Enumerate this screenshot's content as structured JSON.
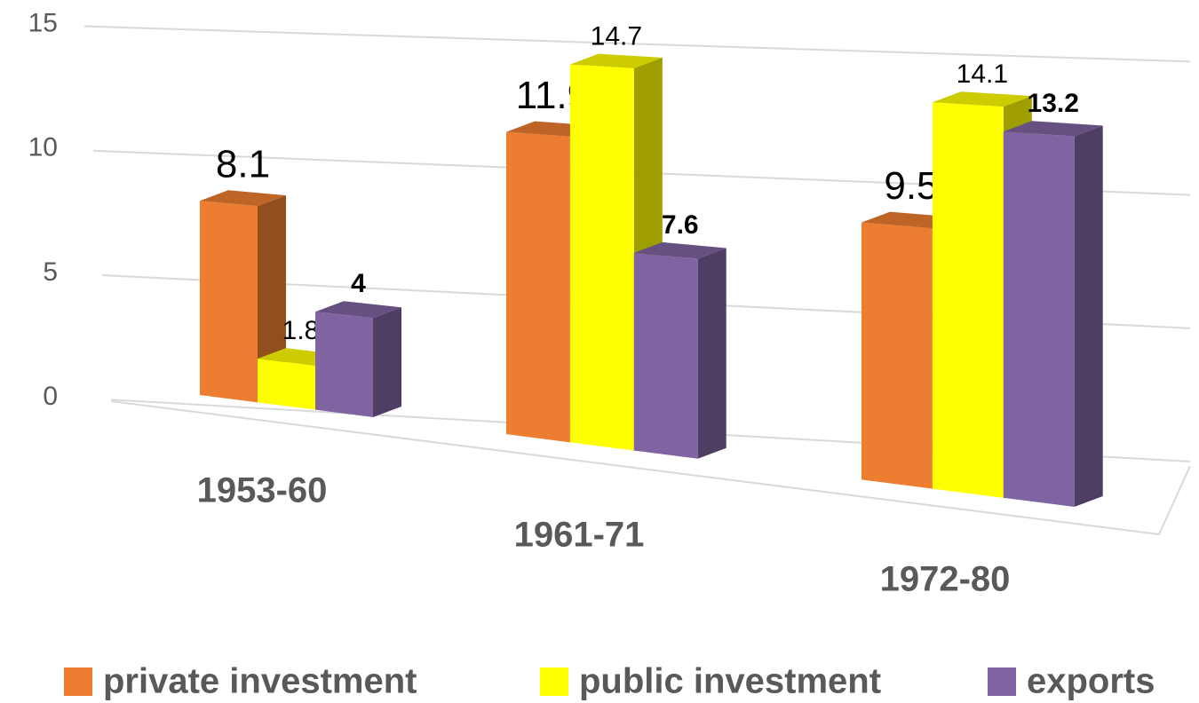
{
  "chart_data": {
    "type": "bar3d",
    "categories": [
      "1953-60",
      "1961-71",
      "1972-80"
    ],
    "series": [
      {
        "name": "private investment",
        "color": "#ed7d31",
        "values": [
          8.1,
          11.9,
          9.5
        ]
      },
      {
        "name": "public investment",
        "color": "#ffff00",
        "values": [
          1.8,
          14.7,
          14.1
        ]
      },
      {
        "name": "exports",
        "color": "#8064a2",
        "values": [
          4,
          7.6,
          13.2
        ]
      }
    ],
    "ylim": [
      0,
      15
    ],
    "yticks": [
      0,
      5,
      10,
      15
    ],
    "grid": true,
    "legend": "bottom"
  }
}
